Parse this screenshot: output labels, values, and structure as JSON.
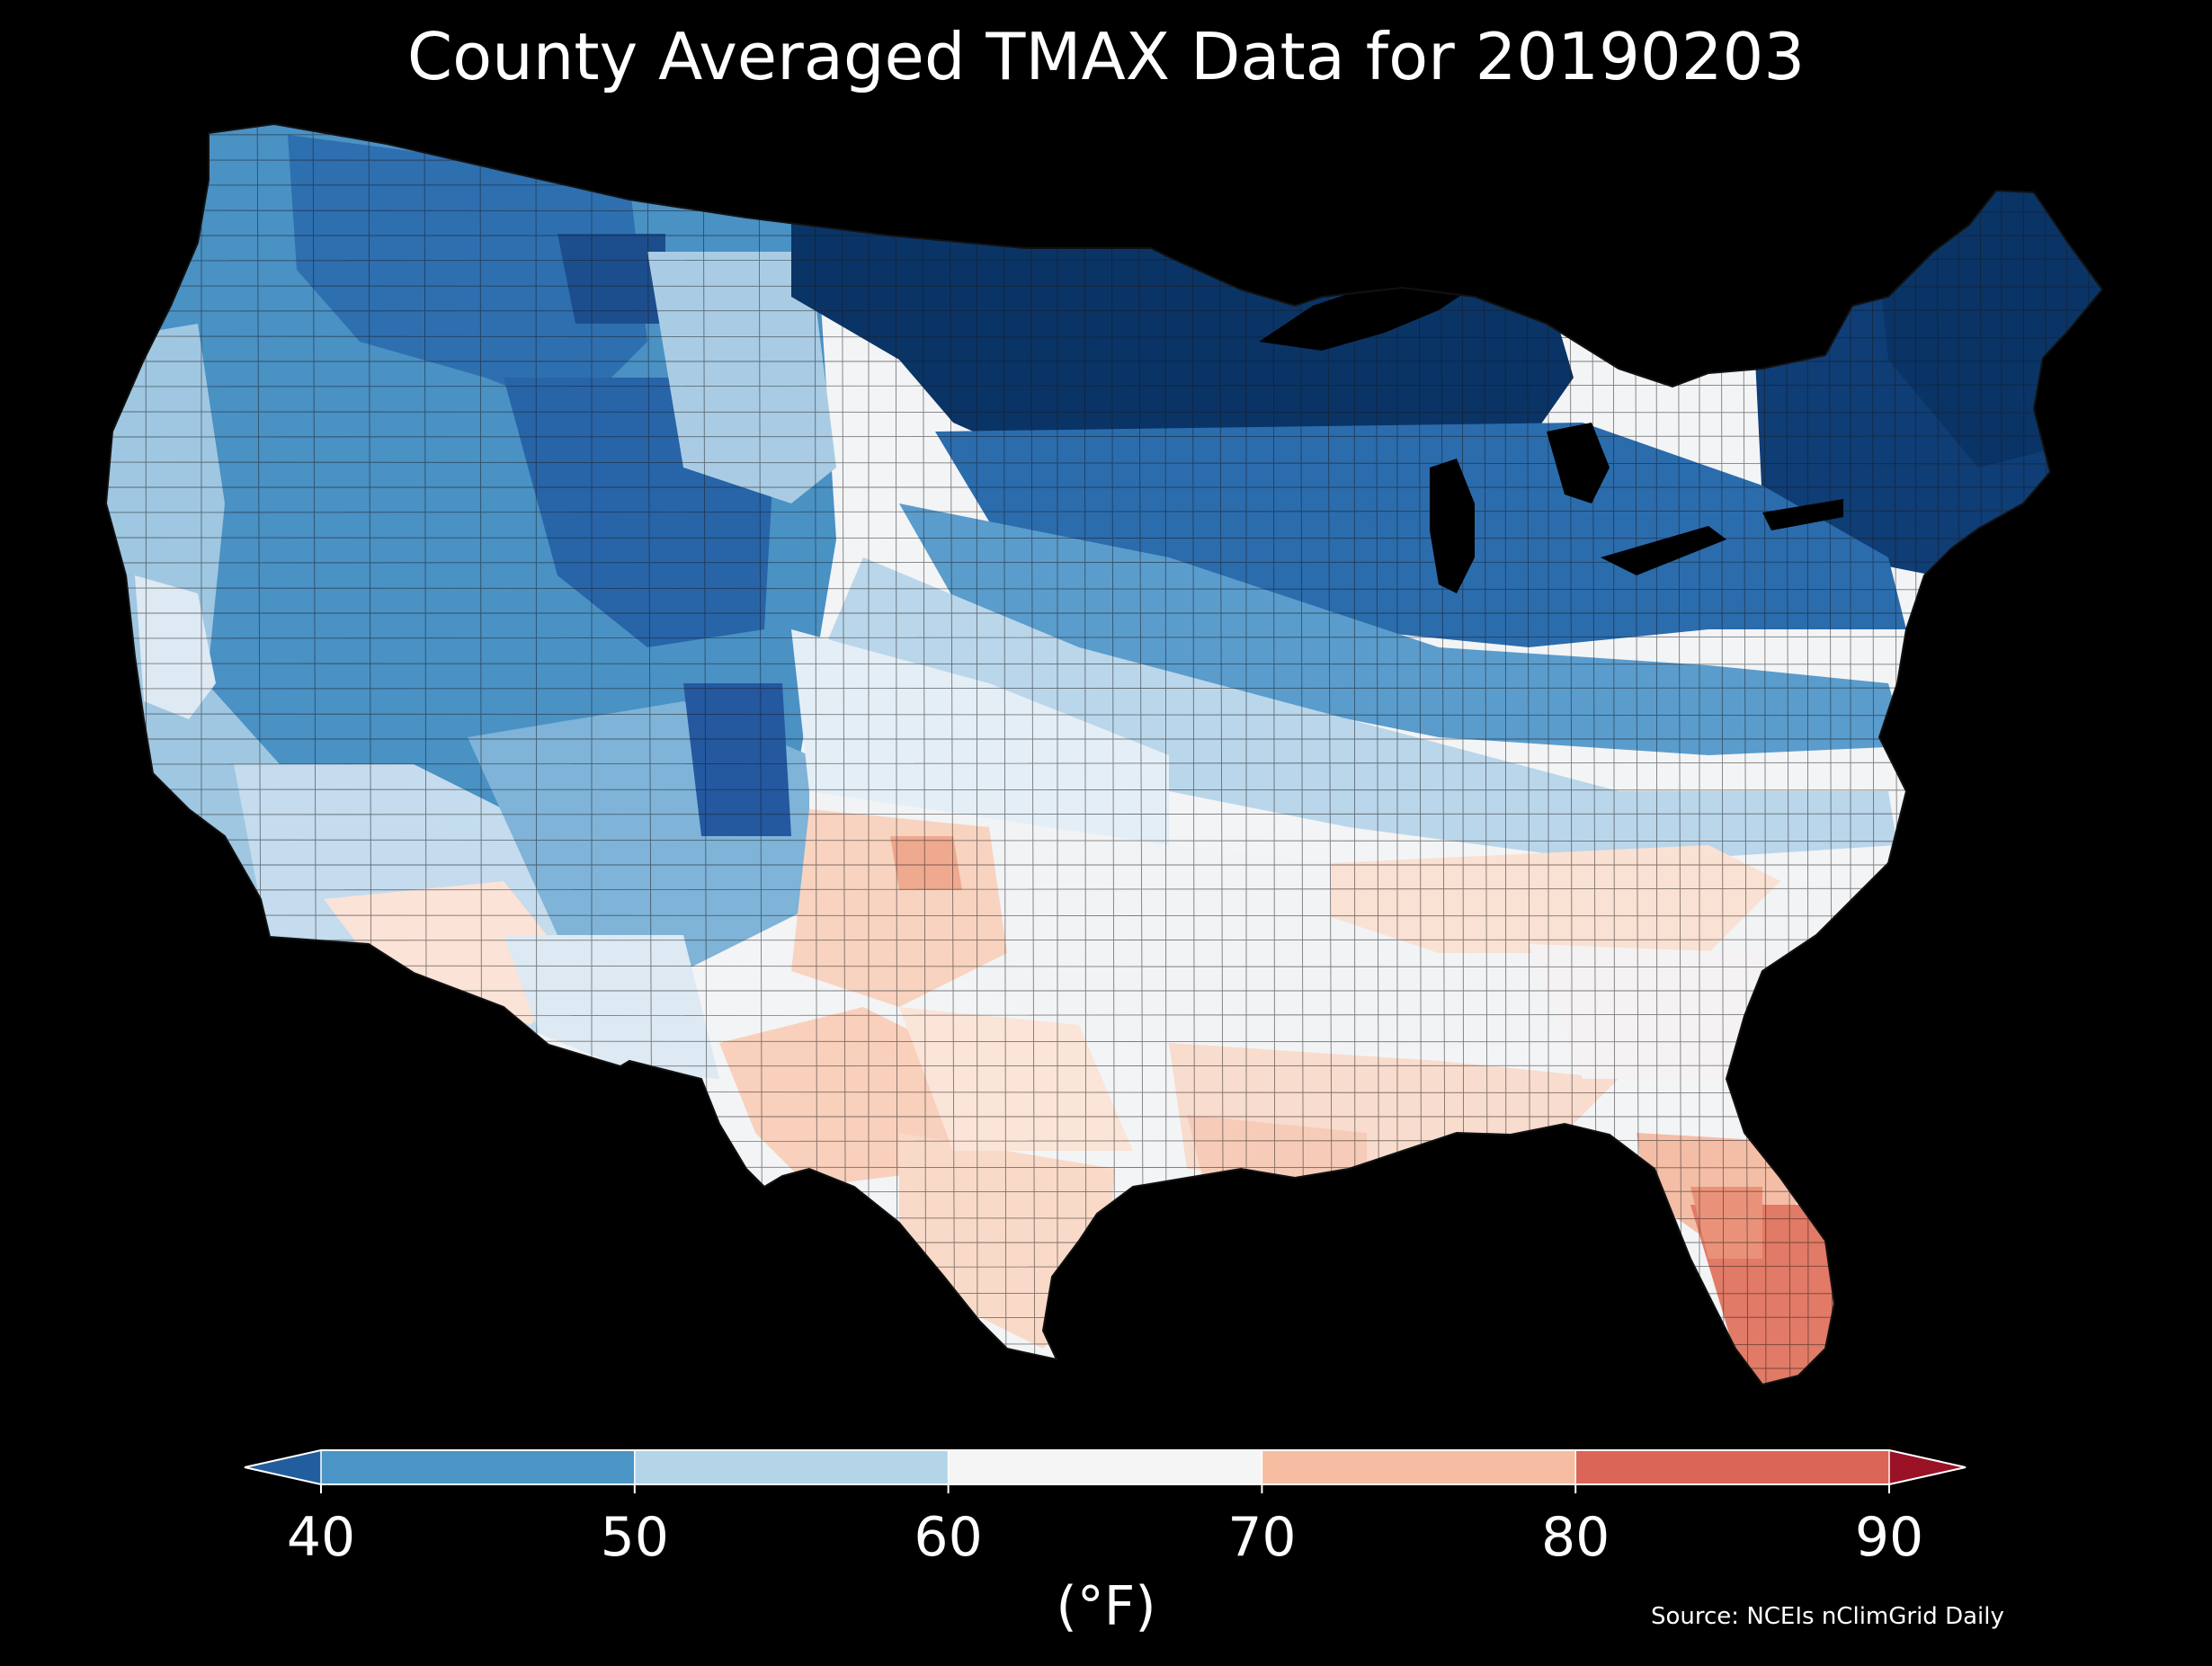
{
  "title": "County Averaged TMAX Data for 20190203",
  "colorbar": {
    "unit_label": "(°F)",
    "tick_labels": [
      "40",
      "50",
      "60",
      "70",
      "80",
      "90"
    ],
    "bins": [
      {
        "range": "<40",
        "color": "#225e9d"
      },
      {
        "range": "40-50",
        "color": "#4a95c6"
      },
      {
        "range": "50-60",
        "color": "#b4d5e8"
      },
      {
        "range": "60-70",
        "color": "#f5f5f5"
      },
      {
        "range": "70-80",
        "color": "#f7bda2"
      },
      {
        "range": "80-90",
        "color": "#db6657"
      },
      {
        "range": ">90",
        "color": "#9b1126"
      }
    ],
    "extend": "both"
  },
  "source": "Source: NCEIs nClimGrid Daily",
  "map": {
    "region": "contiguous United States",
    "background_color": "#000000",
    "county_border_color": "#1a1a1a"
  }
}
